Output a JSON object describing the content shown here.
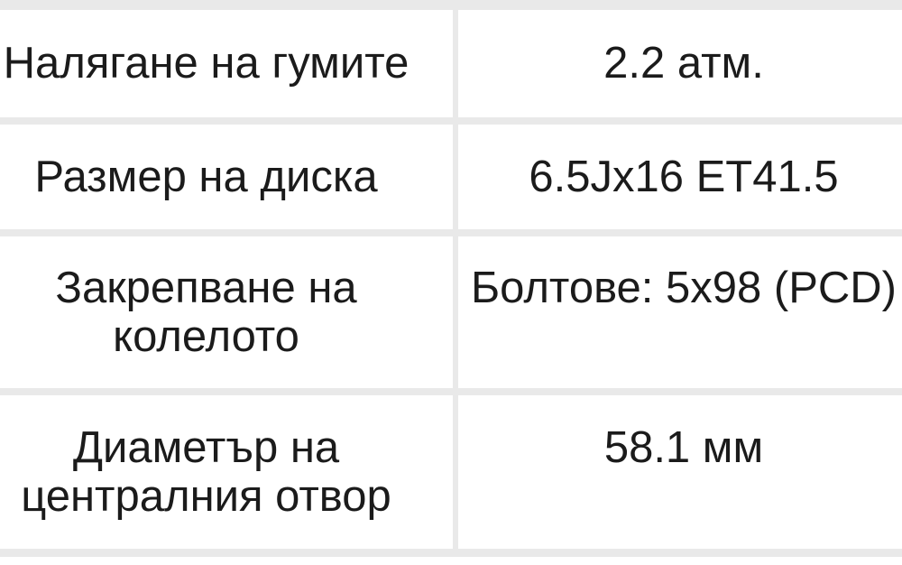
{
  "table": {
    "rows": [
      {
        "label": "Налягане на гумите",
        "value": "2.2 атм."
      },
      {
        "label": "Размер на диска",
        "value": "6.5Jx16 ET41.5"
      },
      {
        "label": "Закрепване на колелото",
        "value": "Болтове: 5x98 (PCD)"
      },
      {
        "label": "Диаметър на централния отвор",
        "value": "58.1 мм"
      }
    ]
  },
  "colors": {
    "divider": "#e9e9e9",
    "text": "#1b1b1b",
    "background": "#ffffff"
  }
}
